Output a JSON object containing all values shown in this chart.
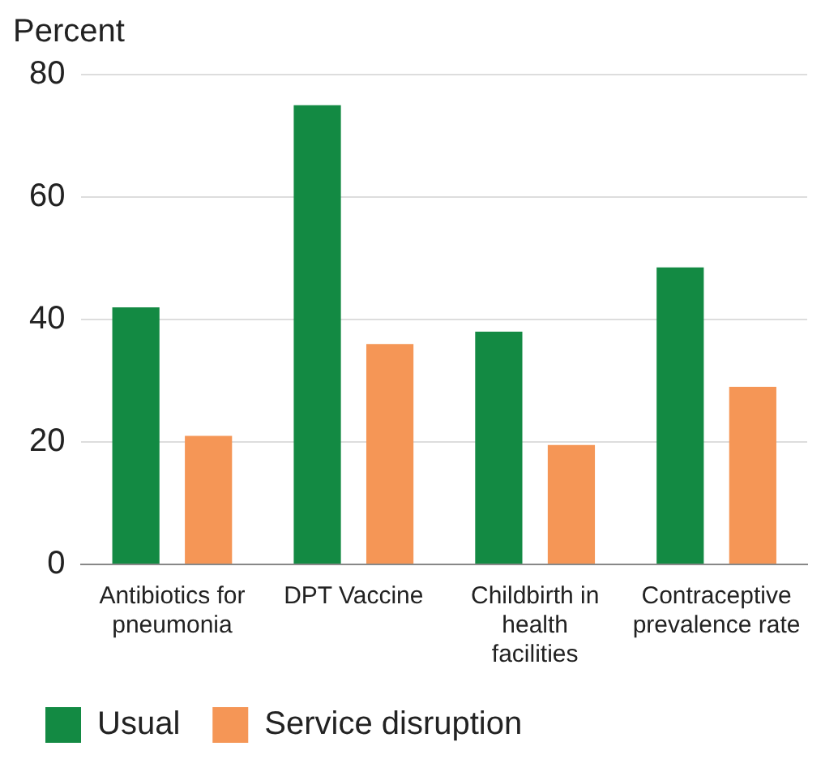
{
  "chart_data": {
    "type": "bar",
    "ylabel": "Percent",
    "categories": [
      "Antibiotics for pneumonia",
      "DPT Vaccine",
      "Childbirth in health facilities",
      "Contraceptive prevalence rate"
    ],
    "series": [
      {
        "name": "Usual",
        "color": "#138a43",
        "values": [
          42,
          75,
          38,
          48.5
        ]
      },
      {
        "name": "Service disruption",
        "color": "#f59656",
        "values": [
          21,
          36,
          19.5,
          29
        ]
      }
    ],
    "ylim": [
      0,
      80
    ],
    "yticks": [
      0,
      20,
      40,
      60,
      80
    ],
    "grid": "y",
    "legend": "bottom"
  }
}
